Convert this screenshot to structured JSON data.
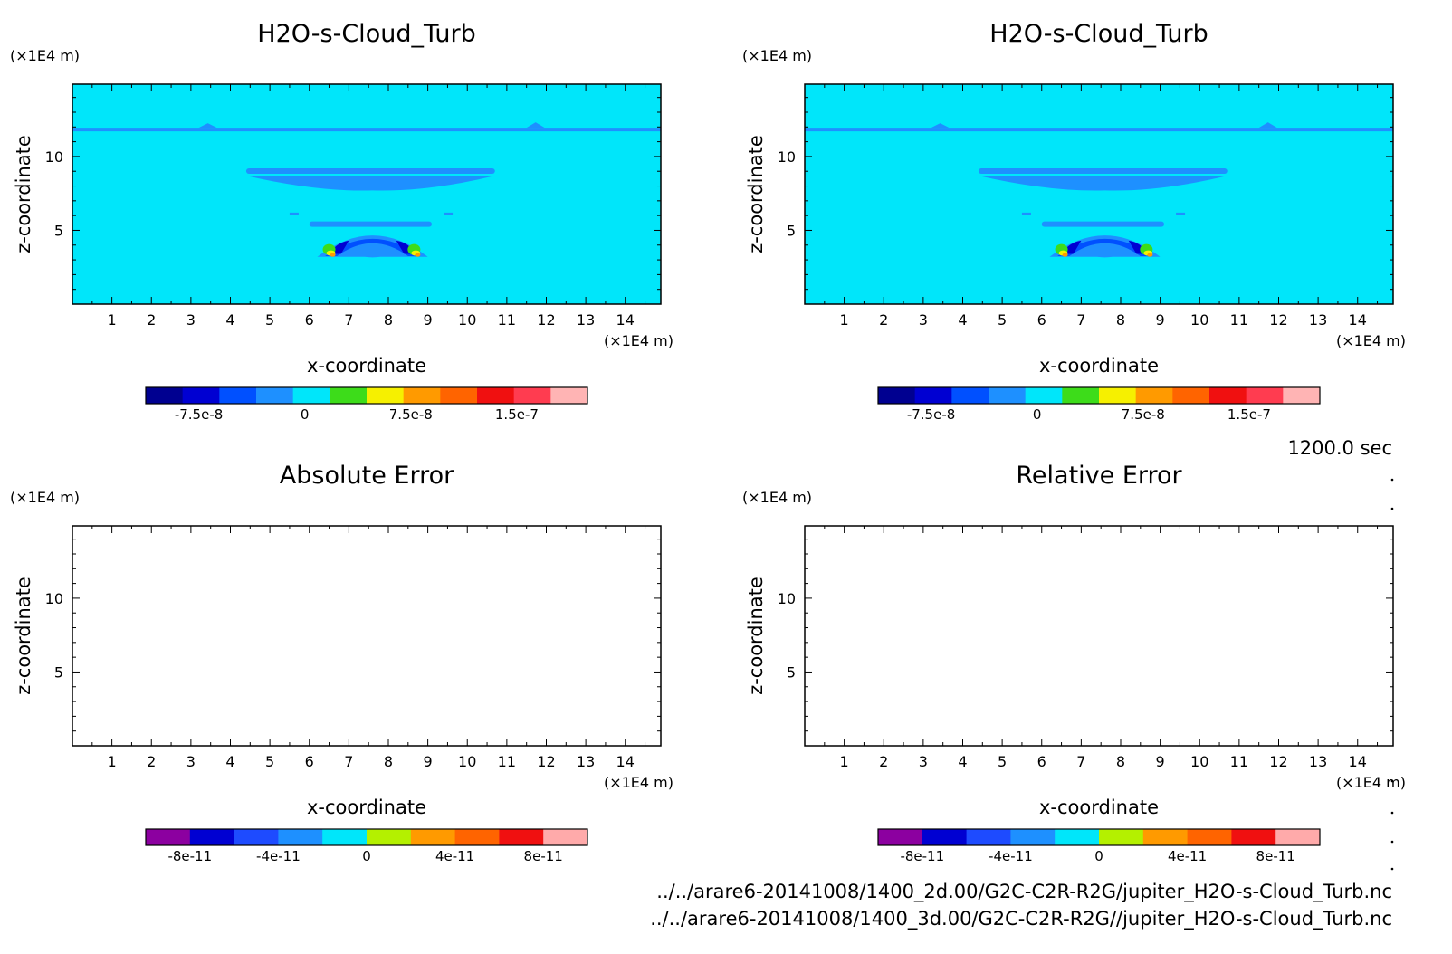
{
  "colors": {
    "background": "#00e6fa",
    "band_mid": "#1e90ff",
    "band_dark": "#0050ff",
    "band_darker": "#0000d2",
    "green": "#3ddc1a",
    "yellow": "#f6f000",
    "orange": "#ff9a00",
    "red": "#f01010"
  },
  "chart_data": [
    {
      "type": "heatmap",
      "title": "H2O-s-Cloud_Turb",
      "xlabel": "x-coordinate",
      "ylabel": "z-coordinate",
      "x_unit": "(×1E4 m)",
      "y_unit": "(×1E4 m)",
      "xlim": [
        0,
        14.9
      ],
      "ylim": [
        0,
        14.9
      ],
      "x_ticks": [
        "1",
        "2",
        "3",
        "4",
        "5",
        "6",
        "7",
        "8",
        "9",
        "10",
        "11",
        "12",
        "13",
        "14"
      ],
      "y_ticks": [
        "5",
        "10"
      ],
      "field": "filled",
      "colorbar": {
        "colors": [
          "#000090",
          "#0000d2",
          "#0050ff",
          "#1e90ff",
          "#00e6fa",
          "#3ddc1a",
          "#f6f000",
          "#ff9a00",
          "#ff6400",
          "#f01010",
          "#ff3c50",
          "#ffb4b4"
        ],
        "tick_labels": [
          "-7.5e-8",
          "0",
          "7.5e-8",
          "1.5e-7"
        ],
        "tick_values": [
          -7.5e-08,
          0,
          7.5e-08,
          1.5e-07
        ],
        "range": [
          -1.125e-07,
          2e-07
        ]
      }
    },
    {
      "type": "heatmap",
      "title": "H2O-s-Cloud_Turb",
      "xlabel": "x-coordinate",
      "ylabel": "z-coordinate",
      "x_unit": "(×1E4 m)",
      "y_unit": "(×1E4 m)",
      "xlim": [
        0,
        14.9
      ],
      "ylim": [
        0,
        14.9
      ],
      "x_ticks": [
        "1",
        "2",
        "3",
        "4",
        "5",
        "6",
        "7",
        "8",
        "9",
        "10",
        "11",
        "12",
        "13",
        "14"
      ],
      "y_ticks": [
        "5",
        "10"
      ],
      "field": "filled",
      "colorbar": {
        "colors": [
          "#000090",
          "#0000d2",
          "#0050ff",
          "#1e90ff",
          "#00e6fa",
          "#3ddc1a",
          "#f6f000",
          "#ff9a00",
          "#ff6400",
          "#f01010",
          "#ff3c50",
          "#ffb4b4"
        ],
        "tick_labels": [
          "-7.5e-8",
          "0",
          "7.5e-8",
          "1.5e-7"
        ],
        "tick_values": [
          -7.5e-08,
          0,
          7.5e-08,
          1.5e-07
        ],
        "range": [
          -1.125e-07,
          2e-07
        ]
      }
    },
    {
      "type": "heatmap",
      "title": "Absolute Error",
      "xlabel": "x-coordinate",
      "ylabel": "z-coordinate",
      "x_unit": "(×1E4 m)",
      "y_unit": "(×1E4 m)",
      "xlim": [
        0,
        14.9
      ],
      "ylim": [
        0,
        14.9
      ],
      "x_ticks": [
        "1",
        "2",
        "3",
        "4",
        "5",
        "6",
        "7",
        "8",
        "9",
        "10",
        "11",
        "12",
        "13",
        "14"
      ],
      "y_ticks": [
        "5",
        "10"
      ],
      "field": "empty",
      "colorbar": {
        "colors": [
          "#8c00a0",
          "#0000d2",
          "#1e4bff",
          "#1e90ff",
          "#00e6fa",
          "#b4f000",
          "#ff9a00",
          "#ff6400",
          "#f01010",
          "#ffaaaa"
        ],
        "tick_labels": [
          "-8e-11",
          "-4e-11",
          "0",
          "4e-11",
          "8e-11"
        ],
        "tick_values": [
          -8e-11,
          -4e-11,
          0,
          4e-11,
          8e-11
        ],
        "range": [
          -1e-10,
          1e-10
        ]
      }
    },
    {
      "type": "heatmap",
      "title": "Relative Error",
      "xlabel": "x-coordinate",
      "ylabel": "z-coordinate",
      "x_unit": "(×1E4 m)",
      "y_unit": "(×1E4 m)",
      "xlim": [
        0,
        14.9
      ],
      "ylim": [
        0,
        14.9
      ],
      "x_ticks": [
        "1",
        "2",
        "3",
        "4",
        "5",
        "6",
        "7",
        "8",
        "9",
        "10",
        "11",
        "12",
        "13",
        "14"
      ],
      "y_ticks": [
        "5",
        "10"
      ],
      "field": "empty",
      "colorbar": {
        "colors": [
          "#8c00a0",
          "#0000d2",
          "#1e4bff",
          "#1e90ff",
          "#00e6fa",
          "#b4f000",
          "#ff9a00",
          "#ff6400",
          "#f01010",
          "#ffaaaa"
        ],
        "tick_labels": [
          "-8e-11",
          "-4e-11",
          "0",
          "4e-11",
          "8e-11"
        ],
        "tick_values": [
          -8e-11,
          -4e-11,
          0,
          4e-11,
          8e-11
        ],
        "range": [
          -1e-10,
          1e-10
        ]
      }
    }
  ],
  "footer": {
    "time": "1200.0 sec",
    "file1": "../../arare6-20141008/1400_2d.00/G2C-C2R-R2G/jupiter_H2O-s-Cloud_Turb.nc",
    "file2": "../../arare6-20141008/1400_3d.00/G2C-C2R-R2G//jupiter_H2O-s-Cloud_Turb.nc"
  }
}
